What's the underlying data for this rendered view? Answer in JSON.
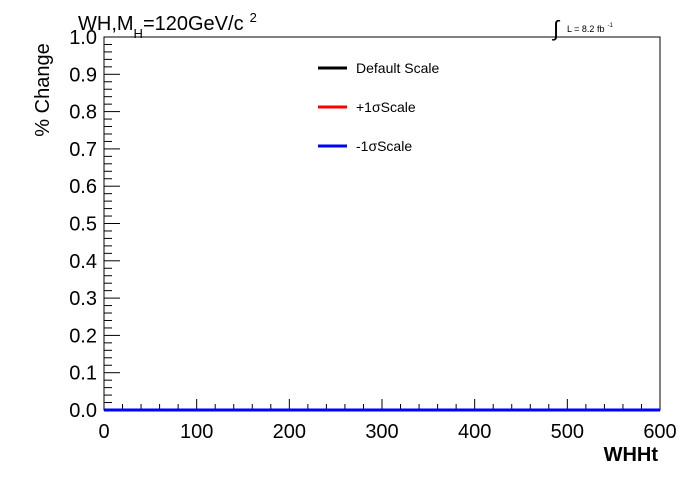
{
  "chart_data": {
    "type": "line",
    "title_parts": {
      "main": "WH,M",
      "sub": "H",
      "rest": "=120GeV/c",
      "sup": "2"
    },
    "lumi_parts": {
      "symbol": "∫",
      "text": "L = 8.2 fb",
      "sup": "-1"
    },
    "xlabel": "WHHt",
    "ylabel": "% Change",
    "xlim": [
      0,
      600
    ],
    "ylim": [
      0,
      1
    ],
    "x_ticks": [
      0,
      100,
      200,
      300,
      400,
      500,
      600
    ],
    "y_ticks": [
      0.0,
      0.1,
      0.2,
      0.3,
      0.4,
      0.5,
      0.6,
      0.7,
      0.8,
      0.9,
      1.0
    ],
    "x_tick_labels": [
      "0",
      "100",
      "200",
      "300",
      "400",
      "500",
      "600"
    ],
    "y_tick_labels": [
      "0.0",
      "0.1",
      "0.2",
      "0.3",
      "0.4",
      "0.5",
      "0.6",
      "0.7",
      "0.8",
      "0.9",
      "1.0"
    ],
    "grid": false,
    "legend_position": "top-center",
    "series": [
      {
        "name": "Default Scale",
        "color": "#000000",
        "x": [
          0,
          600
        ],
        "y": [
          0,
          0
        ]
      },
      {
        "name": "+1σScale",
        "color": "#ff0000",
        "x": [
          0,
          600
        ],
        "y": [
          0,
          0
        ]
      },
      {
        "name": "-1σScale",
        "color": "#0000ff",
        "x": [
          0,
          600
        ],
        "y": [
          0,
          0
        ]
      }
    ]
  }
}
